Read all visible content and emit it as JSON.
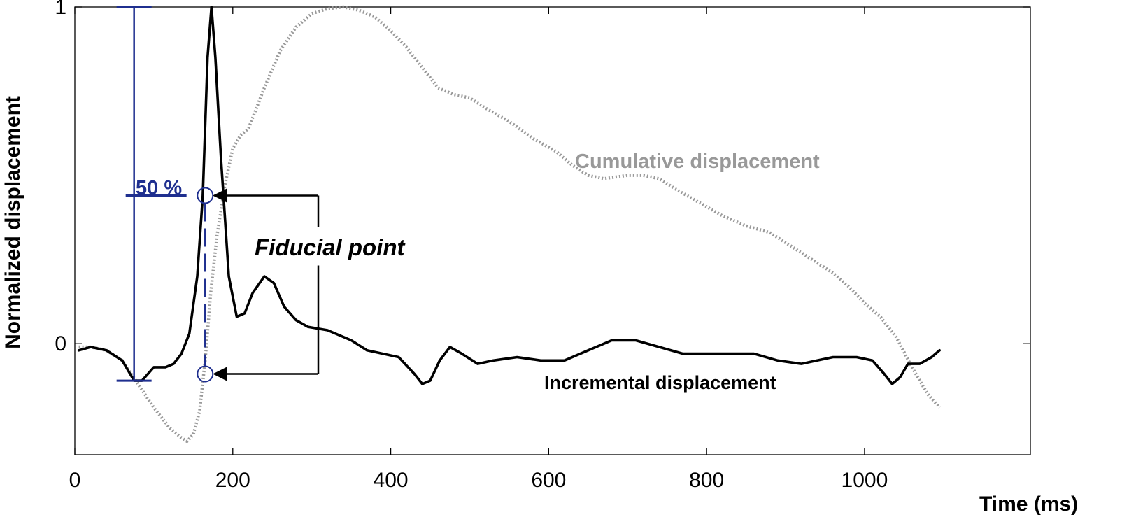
{
  "chart_data": {
    "type": "line",
    "title": "",
    "xlabel": "Time (ms)",
    "ylabel": "Normalized displacement",
    "xlim": [
      0,
      1210
    ],
    "ylim": [
      -0.33,
      1.0
    ],
    "x_ticks": [
      0,
      200,
      400,
      600,
      800,
      1000
    ],
    "y_ticks": [
      0,
      1
    ],
    "grid": false,
    "legend": "none",
    "series": [
      {
        "name": "Incremental displacement",
        "color": "#000000",
        "style": "solid",
        "points": [
          [
            5,
            -0.02
          ],
          [
            20,
            -0.01
          ],
          [
            40,
            -0.02
          ],
          [
            60,
            -0.05
          ],
          [
            75,
            -0.11
          ],
          [
            85,
            -0.11
          ],
          [
            100,
            -0.07
          ],
          [
            115,
            -0.07
          ],
          [
            125,
            -0.06
          ],
          [
            135,
            -0.03
          ],
          [
            145,
            0.03
          ],
          [
            155,
            0.2
          ],
          [
            162,
            0.44
          ],
          [
            168,
            0.85
          ],
          [
            173,
            1.0
          ],
          [
            178,
            0.85
          ],
          [
            185,
            0.55
          ],
          [
            195,
            0.2
          ],
          [
            205,
            0.08
          ],
          [
            215,
            0.09
          ],
          [
            225,
            0.15
          ],
          [
            240,
            0.2
          ],
          [
            252,
            0.18
          ],
          [
            265,
            0.11
          ],
          [
            280,
            0.07
          ],
          [
            295,
            0.05
          ],
          [
            320,
            0.04
          ],
          [
            350,
            0.01
          ],
          [
            370,
            -0.02
          ],
          [
            390,
            -0.03
          ],
          [
            410,
            -0.04
          ],
          [
            430,
            -0.09
          ],
          [
            440,
            -0.12
          ],
          [
            450,
            -0.11
          ],
          [
            462,
            -0.05
          ],
          [
            475,
            -0.01
          ],
          [
            490,
            -0.03
          ],
          [
            510,
            -0.06
          ],
          [
            530,
            -0.05
          ],
          [
            560,
            -0.04
          ],
          [
            590,
            -0.05
          ],
          [
            620,
            -0.05
          ],
          [
            650,
            -0.02
          ],
          [
            680,
            0.01
          ],
          [
            710,
            0.01
          ],
          [
            740,
            -0.01
          ],
          [
            770,
            -0.03
          ],
          [
            800,
            -0.03
          ],
          [
            830,
            -0.03
          ],
          [
            860,
            -0.03
          ],
          [
            890,
            -0.05
          ],
          [
            920,
            -0.06
          ],
          [
            940,
            -0.05
          ],
          [
            960,
            -0.04
          ],
          [
            990,
            -0.04
          ],
          [
            1010,
            -0.05
          ],
          [
            1025,
            -0.09
          ],
          [
            1035,
            -0.12
          ],
          [
            1045,
            -0.1
          ],
          [
            1055,
            -0.06
          ],
          [
            1070,
            -0.06
          ],
          [
            1085,
            -0.04
          ],
          [
            1095,
            -0.02
          ]
        ]
      },
      {
        "name": "Cumulative displacement",
        "color": "#999999",
        "style": "dotted",
        "points": [
          [
            5,
            -0.01
          ],
          [
            20,
            -0.01
          ],
          [
            40,
            -0.02
          ],
          [
            60,
            -0.05
          ],
          [
            80,
            -0.12
          ],
          [
            100,
            -0.19
          ],
          [
            120,
            -0.25
          ],
          [
            135,
            -0.28
          ],
          [
            142,
            -0.29
          ],
          [
            150,
            -0.27
          ],
          [
            158,
            -0.2
          ],
          [
            165,
            -0.05
          ],
          [
            172,
            0.15
          ],
          [
            180,
            0.32
          ],
          [
            190,
            0.47
          ],
          [
            200,
            0.58
          ],
          [
            210,
            0.62
          ],
          [
            220,
            0.64
          ],
          [
            240,
            0.76
          ],
          [
            260,
            0.87
          ],
          [
            280,
            0.94
          ],
          [
            300,
            0.98
          ],
          [
            320,
            0.995
          ],
          [
            340,
            1.0
          ],
          [
            360,
            0.99
          ],
          [
            380,
            0.97
          ],
          [
            400,
            0.93
          ],
          [
            420,
            0.88
          ],
          [
            440,
            0.82
          ],
          [
            460,
            0.76
          ],
          [
            480,
            0.74
          ],
          [
            500,
            0.73
          ],
          [
            520,
            0.7
          ],
          [
            550,
            0.66
          ],
          [
            580,
            0.61
          ],
          [
            610,
            0.57
          ],
          [
            630,
            0.53
          ],
          [
            650,
            0.5
          ],
          [
            670,
            0.49
          ],
          [
            700,
            0.5
          ],
          [
            720,
            0.5
          ],
          [
            740,
            0.49
          ],
          [
            760,
            0.46
          ],
          [
            790,
            0.42
          ],
          [
            820,
            0.38
          ],
          [
            850,
            0.35
          ],
          [
            880,
            0.33
          ],
          [
            900,
            0.3
          ],
          [
            920,
            0.27
          ],
          [
            940,
            0.24
          ],
          [
            960,
            0.21
          ],
          [
            980,
            0.17
          ],
          [
            1000,
            0.12
          ],
          [
            1020,
            0.08
          ],
          [
            1040,
            0.02
          ],
          [
            1060,
            -0.07
          ],
          [
            1080,
            -0.15
          ],
          [
            1095,
            -0.19
          ]
        ]
      }
    ],
    "annotations": {
      "series_label_cumulative": "Cumulative displacement",
      "series_label_incremental": "Incremental displacement",
      "fiducial_label": "Fiducial point",
      "percent_label": "50 %",
      "range_bar": {
        "x": 75,
        "y_min": -0.11,
        "y_max": 1.0,
        "mid": 0.44
      },
      "fiducial_time": 165,
      "fiducial_upper_value": 0.44,
      "fiducial_lower_value": -0.09,
      "colors": {
        "blue": "#1f2f8f",
        "black": "#000000",
        "gray": "#999999"
      }
    }
  }
}
